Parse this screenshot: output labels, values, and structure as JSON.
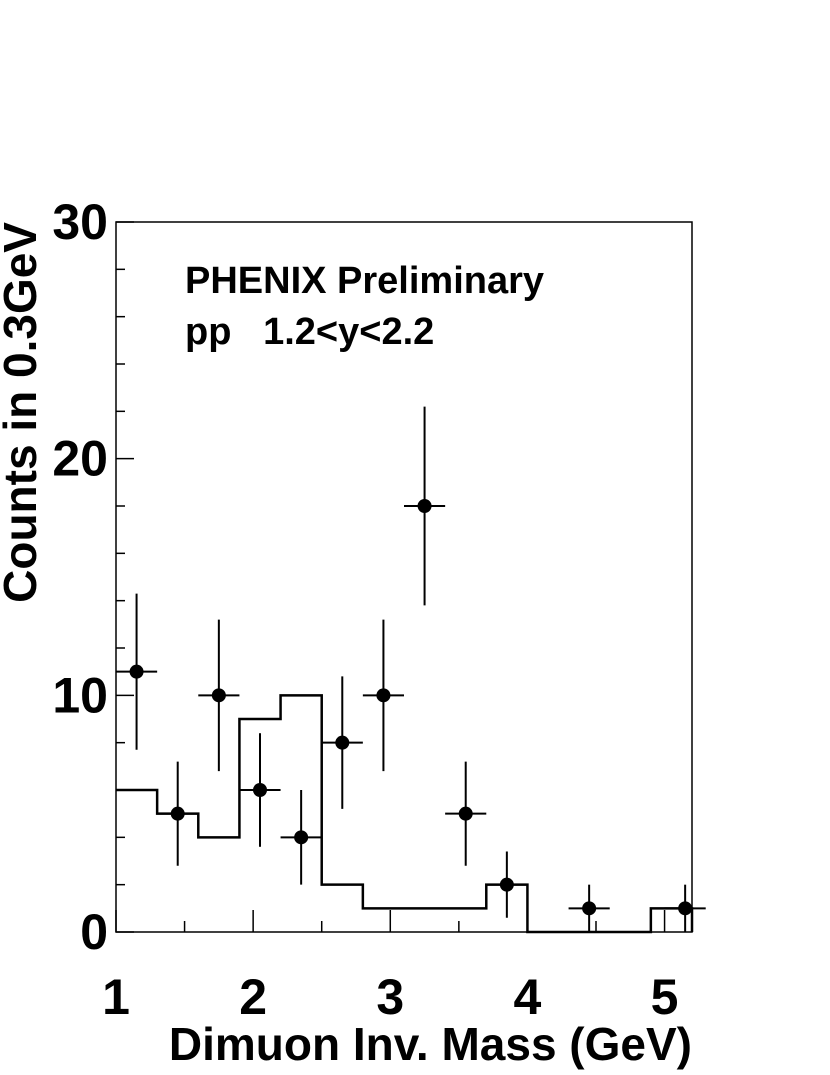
{
  "chart_data": {
    "type": "scatter",
    "title": "",
    "xlabel": "Dimuon Inv. Mass (GeV)",
    "ylabel": "Counts in 0.3GeV",
    "xlim": [
      1,
      5.2
    ],
    "ylim": [
      0,
      30
    ],
    "x_ticks": [
      "1",
      "2",
      "3",
      "4",
      "5"
    ],
    "y_ticks": [
      "0",
      "10",
      "20",
      "30"
    ],
    "grid": false,
    "annotations": [
      "PHENIX Preliminary",
      "pp   1.2<y<2.2"
    ],
    "series": [
      {
        "kind": "points_with_errors",
        "x": [
          1.15,
          1.45,
          1.75,
          2.05,
          2.35,
          2.65,
          2.95,
          3.25,
          3.55,
          3.85,
          4.45,
          5.15
        ],
        "y": [
          11,
          5,
          10,
          6,
          4,
          8,
          10,
          18,
          5,
          2,
          1,
          1
        ],
        "yerr_low": [
          3.3,
          2.2,
          3.2,
          2.4,
          2.0,
          2.8,
          3.2,
          4.2,
          2.2,
          1.4,
          1.0,
          1.0
        ],
        "yerr_high": [
          3.3,
          2.2,
          3.2,
          2.4,
          2.0,
          2.8,
          3.2,
          4.2,
          2.2,
          1.4,
          1.0,
          1.0
        ],
        "xerr": 0.15
      },
      {
        "kind": "histogram",
        "bin_edges": [
          1.0,
          1.3,
          1.6,
          1.9,
          2.2,
          2.5,
          2.8,
          3.1,
          3.4,
          3.7,
          4.0,
          4.3,
          4.6,
          4.9,
          5.2
        ],
        "values": [
          6,
          5,
          4,
          9,
          10,
          2,
          1,
          1,
          1,
          2,
          0,
          0,
          0,
          1
        ]
      }
    ]
  }
}
